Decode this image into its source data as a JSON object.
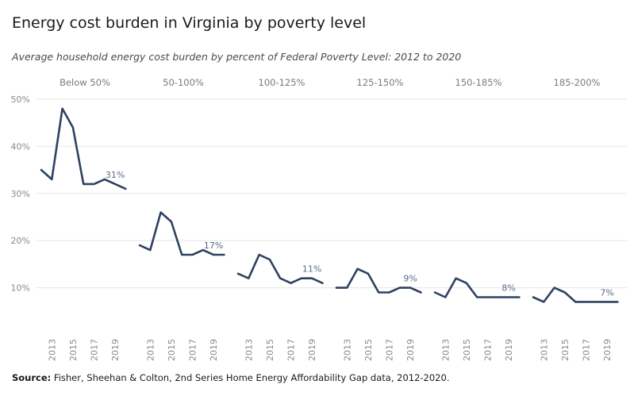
{
  "header": {
    "title": "Energy cost burden in Virginia by poverty level",
    "subtitle": "Average household energy cost burden by percent of Federal Poverty Level: 2012 to 2020"
  },
  "footer": {
    "source_label": "Source:",
    "source_text": " Fisher, Sheehan & Colton, 2nd Series Home Energy Affordability Gap data, 2012-2020."
  },
  "chart_data": {
    "type": "line",
    "title": "Energy cost burden in Virginia by poverty level",
    "subtitle": "Average household energy cost burden by percent of Federal Poverty Level: 2012 to 2020",
    "x": [
      2012,
      2013,
      2014,
      2015,
      2016,
      2017,
      2018,
      2019,
      2020
    ],
    "x_tick_labels": [
      "2013",
      "2015",
      "2017",
      "2019"
    ],
    "y_ticks": [
      "10%",
      "20%",
      "30%",
      "40%",
      "50%"
    ],
    "ylim": [
      0,
      50
    ],
    "grid": true,
    "line_color": "#2e4260",
    "label_color": "#5c6b8a",
    "panels": [
      {
        "name": "Below 50%",
        "values": [
          35,
          33,
          48,
          44,
          32,
          32,
          33,
          32,
          31
        ],
        "end_label": "31%"
      },
      {
        "name": "50-100%",
        "values": [
          19,
          18,
          26,
          24,
          17,
          17,
          18,
          17,
          17
        ],
        "end_label": "17%"
      },
      {
        "name": "100-125%",
        "values": [
          13,
          12,
          17,
          16,
          12,
          11,
          12,
          12,
          11
        ],
        "end_label": "11%"
      },
      {
        "name": "125-150%",
        "values": [
          10,
          10,
          14,
          13,
          9,
          9,
          10,
          10,
          9
        ],
        "end_label": "9%"
      },
      {
        "name": "150-185%",
        "values": [
          9,
          8,
          12,
          11,
          8,
          8,
          8,
          8,
          8
        ],
        "end_label": "8%"
      },
      {
        "name": "185-200%",
        "values": [
          8,
          7,
          10,
          9,
          7,
          7,
          7,
          7,
          7
        ],
        "end_label": "7%"
      }
    ]
  }
}
